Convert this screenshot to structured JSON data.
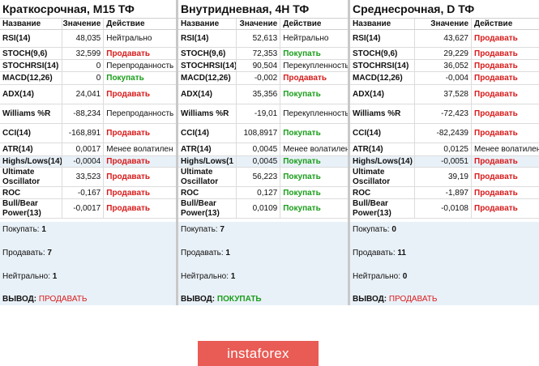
{
  "header": {
    "name": "Название",
    "value": "Значение",
    "action": "Действие"
  },
  "columns": [
    {
      "title": "Краткосрочная, M15 ТФ",
      "rows": [
        {
          "name": "RSI(14)",
          "value": "48,035",
          "action": "Нейтрально",
          "type": "neutral"
        },
        {
          "name": "STOCH(9,6)",
          "value": "32,599",
          "action": "Продавать",
          "type": "sell"
        },
        {
          "name": "STOCHRSI(14)",
          "value": "0",
          "action": "Перепроданность",
          "type": "neutral"
        },
        {
          "name": "MACD(12,26)",
          "value": "0",
          "action": "Покупать",
          "type": "buy"
        },
        {
          "name": "ADX(14)",
          "value": "24,041",
          "action": "Продавать",
          "type": "sell"
        },
        {
          "name": "Williams %R",
          "value": "-88,234",
          "action": "Перепроданность",
          "type": "neutral"
        },
        {
          "name": "CCI(14)",
          "value": "-168,891",
          "action": "Продавать",
          "type": "sell"
        },
        {
          "name": "ATR(14)",
          "value": "0,0017",
          "action": "Менее волатилен",
          "type": "neutral"
        },
        {
          "name": "Highs/Lows(14)",
          "value": "-0,0004",
          "action": "Продавать",
          "type": "sell"
        },
        {
          "name": "Ultimate Oscillator",
          "value": "33,523",
          "action": "Продавать",
          "type": "sell"
        },
        {
          "name": "ROC",
          "value": "-0,167",
          "action": "Продавать",
          "type": "sell"
        },
        {
          "name": "Bull/Bear Power(13)",
          "value": "-0,0017",
          "action": "Продавать",
          "type": "sell"
        }
      ],
      "summary": {
        "buy_label": "Покупать:",
        "buy": "1",
        "sell_label": "Продавать:",
        "sell": "7",
        "neutral_label": "Нейтрально:",
        "neutral": "1",
        "conclusion_label": "ВЫВОД:",
        "conclusion": "ПРОДАВАТЬ",
        "conclusion_type": "sell"
      }
    },
    {
      "title": "Внутридневная, 4H ТФ",
      "rows": [
        {
          "name": "RSI(14)",
          "value": "52,613",
          "action": "Нейтрально",
          "type": "neutral"
        },
        {
          "name": "STOCH(9,6)",
          "value": "72,353",
          "action": "Покупать",
          "type": "buy"
        },
        {
          "name": "STOCHRSI(14)",
          "value": "90,504",
          "action": "Перекупленность",
          "type": "neutral"
        },
        {
          "name": "MACD(12,26)",
          "value": "-0,002",
          "action": "Продавать",
          "type": "sell"
        },
        {
          "name": "ADX(14)",
          "value": "35,356",
          "action": "Покупать",
          "type": "buy"
        },
        {
          "name": "Williams %R",
          "value": "-19,01",
          "action": "Перекупленность",
          "type": "neutral"
        },
        {
          "name": "CCI(14)",
          "value": "108,8917",
          "action": "Покупать",
          "type": "buy"
        },
        {
          "name": "ATR(14)",
          "value": "0,0045",
          "action": "Менее волатилен",
          "type": "neutral"
        },
        {
          "name": "Highs/Lows(1",
          "value": "0,0045",
          "action": "Покупать",
          "type": "buy"
        },
        {
          "name": "Ultimate Oscillator",
          "value": "56,223",
          "action": "Покупать",
          "type": "buy"
        },
        {
          "name": "ROC",
          "value": "0,127",
          "action": "Покупать",
          "type": "buy"
        },
        {
          "name": "Bull/Bear Power(13)",
          "value": "0,0109",
          "action": "Покупать",
          "type": "buy"
        }
      ],
      "summary": {
        "buy_label": "Покупать:",
        "buy": "7",
        "sell_label": "Продавать:",
        "sell": "1",
        "neutral_label": "Нейтрально:",
        "neutral": "1",
        "conclusion_label": "ВЫВОД:",
        "conclusion": "ПОКУПАТЬ",
        "conclusion_type": "buy"
      }
    },
    {
      "title": "Среднесрочная, D ТФ",
      "rows": [
        {
          "name": "RSI(14)",
          "value": "43,627",
          "action": "Продавать",
          "type": "sell"
        },
        {
          "name": "STOCH(9,6)",
          "value": "29,229",
          "action": "Продавать",
          "type": "sell"
        },
        {
          "name": "STOCHRSI(14)",
          "value": "36,052",
          "action": "Продавать",
          "type": "sell"
        },
        {
          "name": "MACD(12,26)",
          "value": "-0,004",
          "action": "Продавать",
          "type": "sell"
        },
        {
          "name": "ADX(14)",
          "value": "37,528",
          "action": "Продавать",
          "type": "sell"
        },
        {
          "name": "Williams %R",
          "value": "-72,423",
          "action": "Продавать",
          "type": "sell"
        },
        {
          "name": "CCI(14)",
          "value": "-82,2439",
          "action": "Продавать",
          "type": "sell"
        },
        {
          "name": "ATR(14)",
          "value": "0,0125",
          "action": "Менее волатилен",
          "type": "neutral"
        },
        {
          "name": "Highs/Lows(14)",
          "value": "-0,0051",
          "action": "Продавать",
          "type": "sell"
        },
        {
          "name": "Ultimate Oscillator",
          "value": "39,19",
          "action": "Продавать",
          "type": "sell"
        },
        {
          "name": "ROC",
          "value": "-1,897",
          "action": "Продавать",
          "type": "sell"
        },
        {
          "name": "Bull/Bear Power(13)",
          "value": "-0,0108",
          "action": "Продавать",
          "type": "sell"
        }
      ],
      "summary": {
        "buy_label": "Покупать:",
        "buy": "0",
        "sell_label": "Продавать:",
        "sell": "11",
        "neutral_label": "Нейтрально:",
        "neutral": "0",
        "conclusion_label": "ВЫВОД:",
        "conclusion": "ПРОДАВАТЬ",
        "conclusion_type": "sell"
      }
    }
  ],
  "logo": {
    "text": "instaforex"
  }
}
